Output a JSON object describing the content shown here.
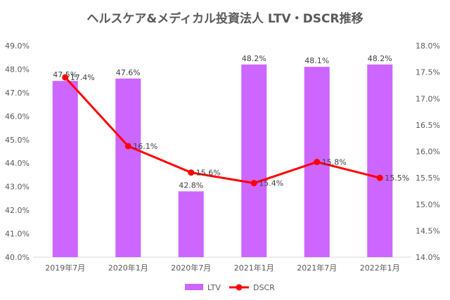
{
  "chart_data": {
    "type": "bar",
    "title": "ヘルスケア&メディカル投資法人 LTV・DSCR推移",
    "categories": [
      "2019年7月",
      "2020年1月",
      "2020年7月",
      "2021年1月",
      "2021年7月",
      "2022年1月"
    ],
    "series": [
      {
        "name": "LTV",
        "type": "bar",
        "axis": "left",
        "color": "#CC66FF",
        "values": [
          47.5,
          47.6,
          42.8,
          48.2,
          48.1,
          48.2
        ],
        "labels": [
          "47.5%",
          "47.6%",
          "42.8%",
          "48.2%",
          "48.1%",
          "48.2%"
        ]
      },
      {
        "name": "DSCR",
        "type": "line",
        "axis": "right",
        "color": "#FF0000",
        "values": [
          17.4,
          16.1,
          15.6,
          15.4,
          15.8,
          15.5
        ],
        "labels": [
          "17.4%",
          "16.1%",
          "15.6%",
          "15.4%",
          "15.8%",
          "15.5%"
        ]
      }
    ],
    "y_left": {
      "ylim": [
        40,
        49
      ],
      "ticks": [
        "40.0%",
        "41.0%",
        "42.0%",
        "43.0%",
        "44.0%",
        "45.0%",
        "46.0%",
        "47.0%",
        "48.0%",
        "49.0%"
      ]
    },
    "y_right": {
      "ylim": [
        14,
        18
      ],
      "ticks": [
        "14.0%",
        "14.5%",
        "15.0%",
        "15.5%",
        "16.0%",
        "16.5%",
        "17.0%",
        "17.5%",
        "18.0%"
      ]
    },
    "grid": false,
    "legend": "bottom"
  }
}
